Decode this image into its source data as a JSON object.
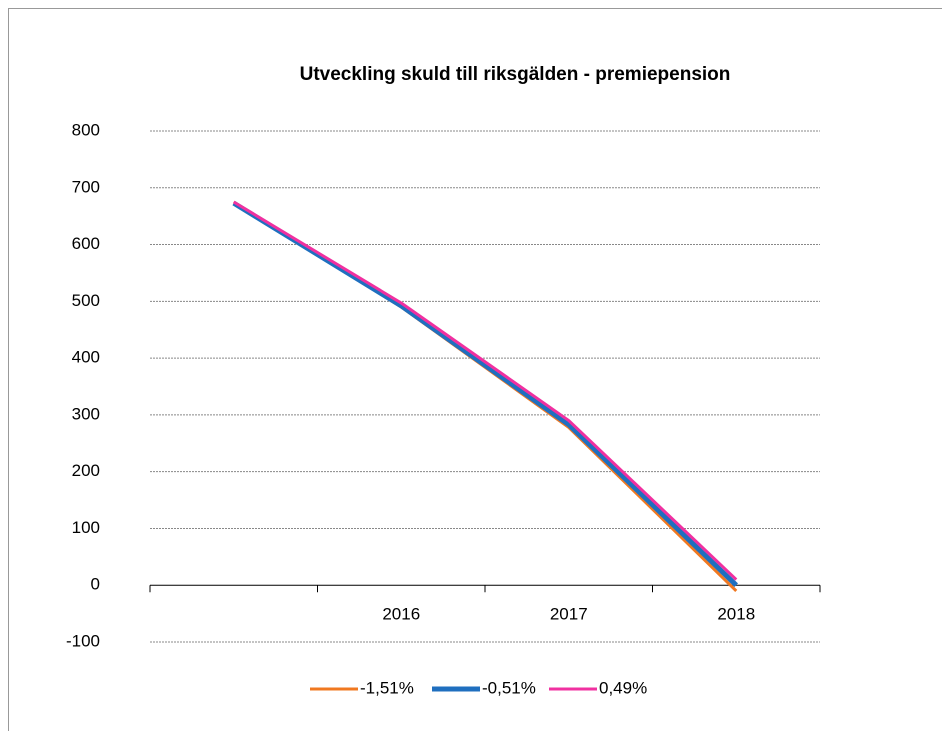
{
  "chart_data": {
    "type": "line",
    "title": "Utveckling skuld till riksgälden - premiepension",
    "categories": [
      null,
      "2016",
      "2017",
      "2018"
    ],
    "series": [
      {
        "name": "-1,51%",
        "color": "#f07820",
        "values": [
          675,
          490,
          278,
          -10
        ]
      },
      {
        "name": "-0,51%",
        "color": "#1f6fbf",
        "values": [
          673,
          492,
          283,
          0
        ]
      },
      {
        "name": "0,49%",
        "color": "#f030a0",
        "values": [
          675,
          497,
          290,
          10
        ]
      }
    ],
    "ylim": [
      -100,
      800
    ],
    "yticks": [
      -100,
      0,
      100,
      200,
      300,
      400,
      500,
      600,
      700,
      800
    ],
    "grid": true,
    "legend": "bottom"
  }
}
